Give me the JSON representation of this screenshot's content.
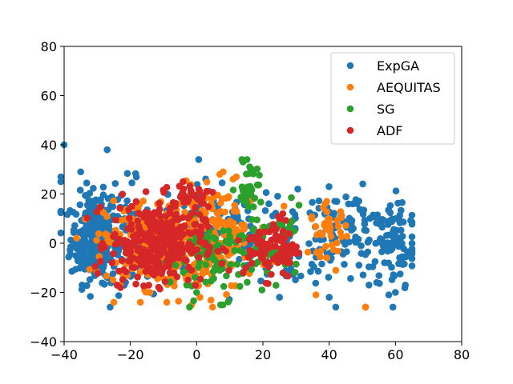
{
  "chart_data": {
    "type": "scatter",
    "xlim": [
      -40,
      80
    ],
    "ylim": [
      -40,
      80
    ],
    "xticks": [
      "−40",
      "−20",
      "0",
      "20",
      "40",
      "60",
      "80"
    ],
    "yticks": [
      "−40",
      "−20",
      "0",
      "20",
      "40",
      "60",
      "80"
    ],
    "grid": false,
    "legend_position": "upper right",
    "series": [
      {
        "name": "ExpGA",
        "color": "#1f77b4",
        "clusters": [
          {
            "cx": -31,
            "cy": 2,
            "sx": 3.5,
            "sy": 9,
            "n": 260
          },
          {
            "cx": -22,
            "cy": 5,
            "sx": 4,
            "sy": 10,
            "n": 60
          },
          {
            "cx": 5,
            "cy": 5,
            "sx": 10,
            "sy": 10,
            "n": 90
          },
          {
            "cx": 28,
            "cy": 0,
            "sx": 8,
            "sy": 9,
            "n": 80
          },
          {
            "cx": 46,
            "cy": 5,
            "sx": 7,
            "sy": 8,
            "n": 90
          },
          {
            "cx": 60,
            "cy": 0,
            "sx": 4,
            "sy": 10,
            "n": 90
          }
        ],
        "points": [
          [
            -40,
            40
          ],
          [
            -41,
            27
          ],
          [
            -41,
            13
          ],
          [
            -35,
            29
          ],
          [
            -27,
            38
          ],
          [
            -41,
            25
          ],
          [
            51,
            -26
          ],
          [
            52,
            -17
          ],
          [
            60,
            -20
          ],
          [
            58,
            -21
          ],
          [
            40,
            -22
          ],
          [
            25,
            -22
          ],
          [
            63,
            -17
          ]
        ]
      },
      {
        "name": "AEQUITAS",
        "color": "#ff7f0e",
        "clusters": [
          {
            "cx": -10,
            "cy": 0,
            "sx": 9,
            "sy": 9,
            "n": 300
          },
          {
            "cx": 8,
            "cy": 3,
            "sx": 7,
            "sy": 10,
            "n": 120
          },
          {
            "cx": 40,
            "cy": 5,
            "sx": 3,
            "sy": 5,
            "n": 40
          }
        ],
        "points": [
          [
            8,
            29
          ],
          [
            7,
            28
          ],
          [
            12,
            27
          ],
          [
            11,
            26
          ],
          [
            -9,
            -24
          ],
          [
            -25,
            -24
          ],
          [
            -17,
            -24
          ],
          [
            1,
            -22
          ],
          [
            42,
            -11
          ],
          [
            51,
            -26
          ],
          [
            36,
            -21
          ]
        ]
      },
      {
        "name": "SG",
        "color": "#2ca02c",
        "clusters": [
          {
            "cx": 8,
            "cy": -6,
            "sx": 8,
            "sy": 8,
            "n": 110
          },
          {
            "cx": 16,
            "cy": 22,
            "sx": 2,
            "sy": 5,
            "n": 35
          },
          {
            "cx": 26,
            "cy": 4,
            "sx": 3,
            "sy": 5,
            "n": 25
          }
        ],
        "points": [
          [
            14,
            33
          ],
          [
            16,
            31
          ],
          [
            0,
            -20
          ],
          [
            -3,
            -17
          ]
        ]
      },
      {
        "name": "ADF",
        "color": "#d62728",
        "clusters": [
          {
            "cx": -12,
            "cy": 0,
            "sx": 7,
            "sy": 8,
            "n": 330
          },
          {
            "cx": 23,
            "cy": -2,
            "sx": 4,
            "sy": 6,
            "n": 90
          },
          {
            "cx": -2,
            "cy": 20,
            "sx": 4,
            "sy": 3,
            "n": 30
          }
        ],
        "points": [
          [
            -24,
            -17
          ],
          [
            -23,
            -18
          ],
          [
            26,
            12
          ],
          [
            25,
            10
          ],
          [
            14,
            -12
          ]
        ]
      }
    ]
  }
}
